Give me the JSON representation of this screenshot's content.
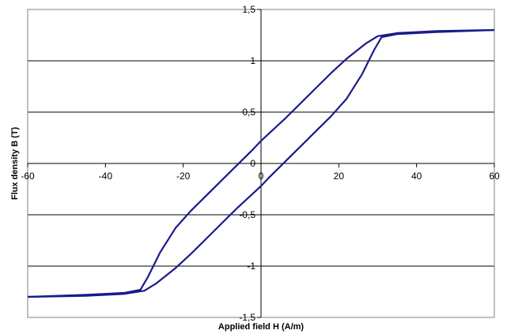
{
  "chart_data": {
    "type": "line",
    "title": "",
    "xlabel": "Applied field H (A/m)",
    "ylabel": "Flux density B (T)",
    "xlim": [
      -60,
      60
    ],
    "ylim": [
      -1.5,
      1.5
    ],
    "x_ticks": [
      -60,
      -40,
      -20,
      0,
      20,
      40,
      60
    ],
    "x_tick_labels": [
      "-60",
      "-40",
      "-20",
      "0",
      "20",
      "40",
      "60"
    ],
    "y_ticks": [
      -1.5,
      -1,
      -0.5,
      0,
      0.5,
      1,
      1.5
    ],
    "y_tick_labels": [
      "-1,5",
      "-1",
      "-0,5",
      "0",
      "0,5",
      "1",
      "1,5"
    ],
    "grid": "horizontal",
    "legend": "none",
    "series_color": "#1a1a8c",
    "series": [
      {
        "x": [
          -60,
          -45,
          -35,
          -30,
          -27,
          -22,
          -18,
          -14,
          -10,
          -6,
          -2,
          0,
          2,
          6,
          10,
          14,
          18,
          22,
          26,
          29,
          31,
          35,
          45,
          60
        ],
        "y": [
          -1.3,
          -1.29,
          -1.27,
          -1.24,
          -1.17,
          -1.02,
          -0.88,
          -0.73,
          -0.58,
          -0.43,
          -0.29,
          -0.22,
          -0.14,
          0.01,
          0.16,
          0.31,
          0.46,
          0.63,
          0.87,
          1.1,
          1.23,
          1.26,
          1.28,
          1.3
        ]
      },
      {
        "x": [
          -60,
          -45,
          -35,
          -31,
          -29,
          -26,
          -22,
          -18,
          -14,
          -10,
          -6,
          -2,
          0,
          2,
          6,
          10,
          14,
          18,
          22,
          27,
          30,
          35,
          45,
          60
        ],
        "y": [
          -1.3,
          -1.28,
          -1.26,
          -1.23,
          -1.1,
          -0.87,
          -0.63,
          -0.46,
          -0.31,
          -0.16,
          -0.01,
          0.14,
          0.22,
          0.29,
          0.43,
          0.58,
          0.73,
          0.88,
          1.02,
          1.17,
          1.24,
          1.27,
          1.29,
          1.3
        ]
      }
    ]
  }
}
